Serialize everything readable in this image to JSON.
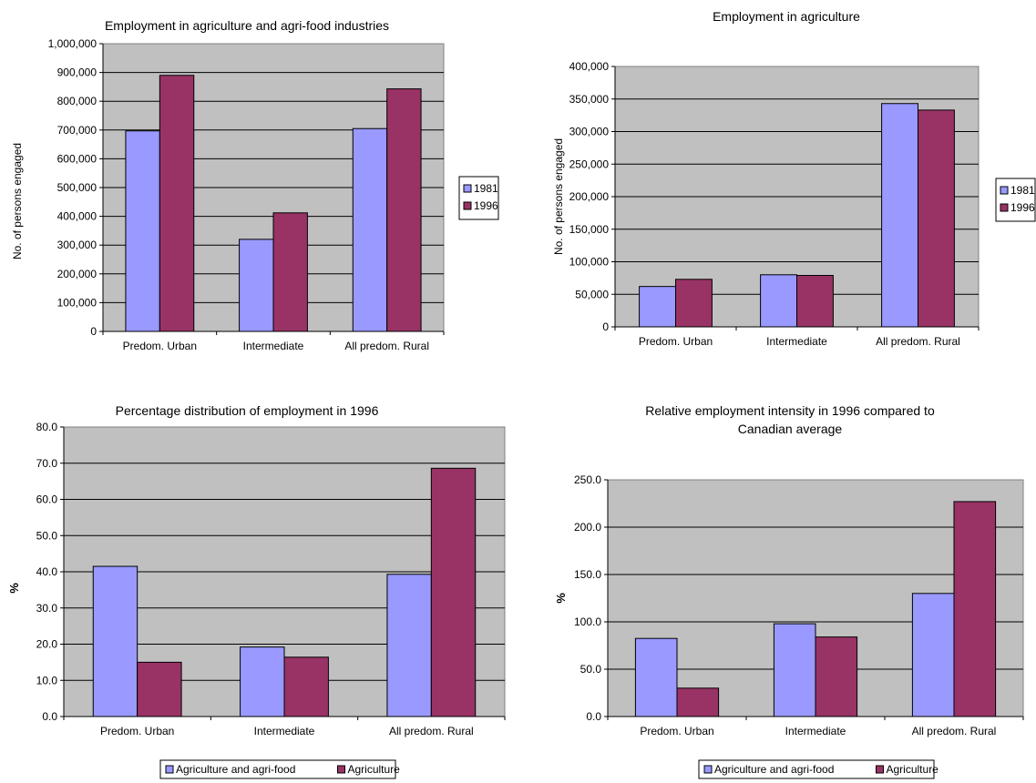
{
  "colors": {
    "series_a": "#9999ff",
    "series_b": "#993366",
    "plot_bg": "#c0c0c0"
  },
  "chart_data": [
    {
      "type": "bar",
      "title": "Employment in agriculture and agri-food industries",
      "ylabel": "No. of persons engaged",
      "categories": [
        "Predom. Urban",
        "Intermediate",
        "All predom. Rural"
      ],
      "series": [
        {
          "name": "1981",
          "values": [
            697000,
            320000,
            705000
          ]
        },
        {
          "name": "1996",
          "values": [
            890000,
            412000,
            843000
          ]
        }
      ],
      "ylim": [
        0,
        1000000
      ],
      "ytick_step": 100000,
      "ytick_labels": [
        "0",
        "100,000",
        "200,000",
        "300,000",
        "400,000",
        "500,000",
        "600,000",
        "700,000",
        "800,000",
        "900,000",
        "1,000,000"
      ],
      "grid": true,
      "legend_position": "right"
    },
    {
      "type": "bar",
      "title": "Employment in agriculture",
      "ylabel": "No. of persons engaged",
      "categories": [
        "Predom. Urban",
        "Intermediate",
        "All predom. Rural"
      ],
      "series": [
        {
          "name": "1981",
          "values": [
            62000,
            80000,
            343000
          ]
        },
        {
          "name": "1996",
          "values": [
            73000,
            79000,
            333000
          ]
        }
      ],
      "ylim": [
        0,
        400000
      ],
      "ytick_step": 50000,
      "ytick_labels": [
        "0",
        "50,000",
        "100,000",
        "150,000",
        "200,000",
        "250,000",
        "300,000",
        "350,000",
        "400,000"
      ],
      "grid": true,
      "legend_position": "right"
    },
    {
      "type": "bar",
      "title": "Percentage distribution of employment in 1996",
      "ylabel": "%",
      "categories": [
        "Predom. Urban",
        "Intermediate",
        "All predom. Rural"
      ],
      "series": [
        {
          "name": "Agriculture and agri-food",
          "values": [
            41.5,
            19.2,
            39.3
          ]
        },
        {
          "name": "Agriculture",
          "values": [
            15.0,
            16.4,
            68.6
          ]
        }
      ],
      "ylim": [
        0,
        80
      ],
      "ytick_step": 10,
      "ytick_labels": [
        "0.0",
        "10.0",
        "20.0",
        "30.0",
        "40.0",
        "50.0",
        "60.0",
        "70.0",
        "80.0"
      ],
      "grid": true,
      "legend_position": "bottom"
    },
    {
      "type": "bar",
      "title": "Relative employment intensity in 1996 compared to Canadian average",
      "ylabel": "%",
      "categories": [
        "Predom. Urban",
        "Intermediate",
        "All predom. Rural"
      ],
      "series": [
        {
          "name": "Agriculture and agri-food",
          "values": [
            82.5,
            98.0,
            130.0
          ]
        },
        {
          "name": "Agriculture",
          "values": [
            30.0,
            84.0,
            227.0
          ]
        }
      ],
      "ylim": [
        0,
        250
      ],
      "ytick_step": 50,
      "ytick_labels": [
        "0.0",
        "50.0",
        "100.0",
        "150.0",
        "200.0",
        "250.0"
      ],
      "grid": true,
      "legend_position": "bottom"
    }
  ]
}
